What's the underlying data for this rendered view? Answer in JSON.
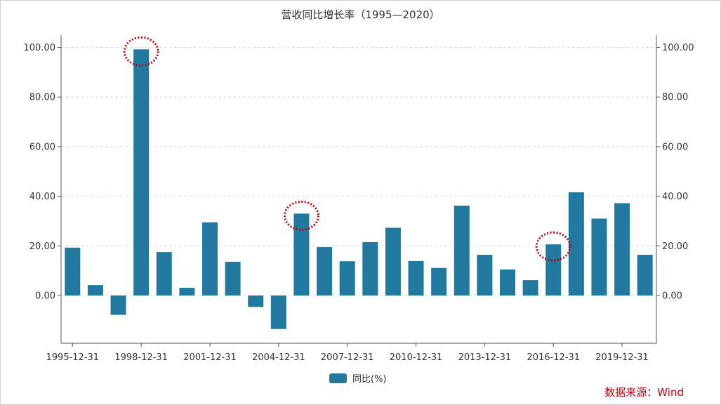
{
  "chart_data": {
    "type": "bar",
    "title": "营收同比增长率（1995—2020）",
    "categories": [
      "1995-12-31",
      "1996-12-31",
      "1997-12-31",
      "1998-12-31",
      "1999-12-31",
      "2000-12-31",
      "2001-12-31",
      "2002-12-31",
      "2003-12-31",
      "2004-12-31",
      "2005-12-31",
      "2006-12-31",
      "2007-12-31",
      "2008-12-31",
      "2009-12-31",
      "2010-12-31",
      "2011-12-31",
      "2012-12-31",
      "2013-12-31",
      "2014-12-31",
      "2015-12-31",
      "2016-12-31",
      "2017-12-31",
      "2018-12-31",
      "2019-12-31",
      "2020-12-31"
    ],
    "x_tick_labels": [
      "1995-12-31",
      "1998-12-31",
      "2001-12-31",
      "2004-12-31",
      "2007-12-31",
      "2010-12-31",
      "2013-12-31",
      "2016-12-31",
      "2019-12-31"
    ],
    "series": [
      {
        "name": "同比(%)",
        "color": "#21799f",
        "values": [
          19.3,
          4.2,
          -7.8,
          99.2,
          17.5,
          3.1,
          29.5,
          13.6,
          -4.6,
          -13.5,
          33.0,
          19.5,
          13.8,
          21.5,
          27.3,
          13.9,
          11.1,
          36.2,
          16.4,
          10.5,
          6.2,
          20.6,
          41.6,
          31.0,
          37.2,
          16.4
        ]
      }
    ],
    "y_tick_labels": [
      "0.00",
      "20.00",
      "40.00",
      "60.00",
      "80.00",
      "100.00"
    ],
    "ylim": [
      -20,
      105
    ],
    "grid": "horizontal-dashed",
    "dual_y_axis": true,
    "legend_position": "bottom-center",
    "highlighted_categories": [
      "1998-12-31",
      "2005-12-31",
      "2016-12-31"
    ],
    "highlight_color": "#c0000c"
  },
  "source_note": "数据来源：Wind"
}
